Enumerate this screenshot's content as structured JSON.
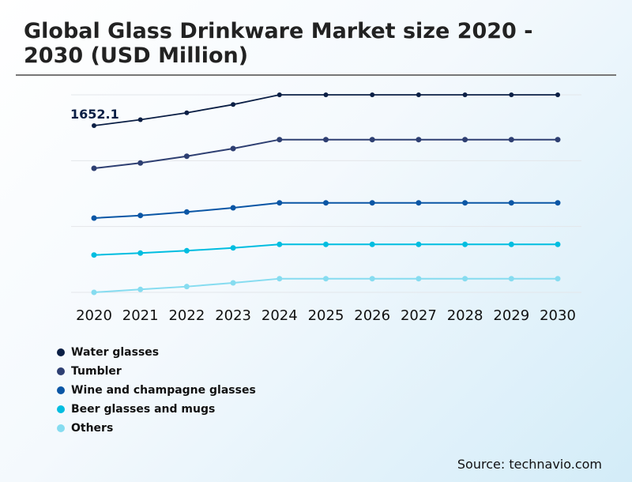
{
  "title": "Global Glass Drinkware Market size 2020 - 2030 (USD Million)",
  "source": "Source: technavio.com",
  "chart_data": {
    "type": "line",
    "title": "Global Glass Drinkware Market size 2020 - 2030 (USD Million)",
    "categories": [
      "2020",
      "2021",
      "2022",
      "2023",
      "2024",
      "2025",
      "2026",
      "2027",
      "2028",
      "2029",
      "2030"
    ],
    "ylim": [
      143,
      1931
    ],
    "grid": true,
    "legend_position": "bottom-left",
    "annotation": {
      "series": "Water glasses",
      "category": "2020",
      "text": "1652.1"
    },
    "series": [
      {
        "name": "Water glasses",
        "color": "#0b1f45",
        "values": [
          1652.1,
          1705.7,
          1768.6,
          1843.0,
          1931.0,
          1931.0,
          1931.0,
          1931.0,
          1931.0,
          1931.0,
          1931.0
        ]
      },
      {
        "name": "Tumbler",
        "color": "#2e3f72",
        "values": [
          1265.9,
          1313.8,
          1375.3,
          1444.7,
          1525.5,
          1525.5,
          1525.5,
          1525.5,
          1525.5,
          1525.5,
          1525.5
        ]
      },
      {
        "name": "Wine and champagne glasses",
        "color": "#0a56a5",
        "values": [
          815.3,
          838.9,
          870.4,
          908.3,
          953.3,
          953.3,
          953.3,
          953.3,
          953.3,
          953.3,
          953.3
        ]
      },
      {
        "name": "Beer glasses and mugs",
        "color": "#00bde0",
        "values": [
          481.3,
          498.5,
          519.9,
          545.7,
          577.2,
          577.2,
          577.2,
          577.2,
          577.2,
          577.2,
          577.2
        ]
      },
      {
        "name": "Others",
        "color": "#86dcf0",
        "values": [
          143.0,
          169.5,
          195.3,
          228.9,
          266.8,
          266.8,
          266.8,
          266.8,
          266.8,
          266.8,
          266.8
        ]
      }
    ]
  }
}
